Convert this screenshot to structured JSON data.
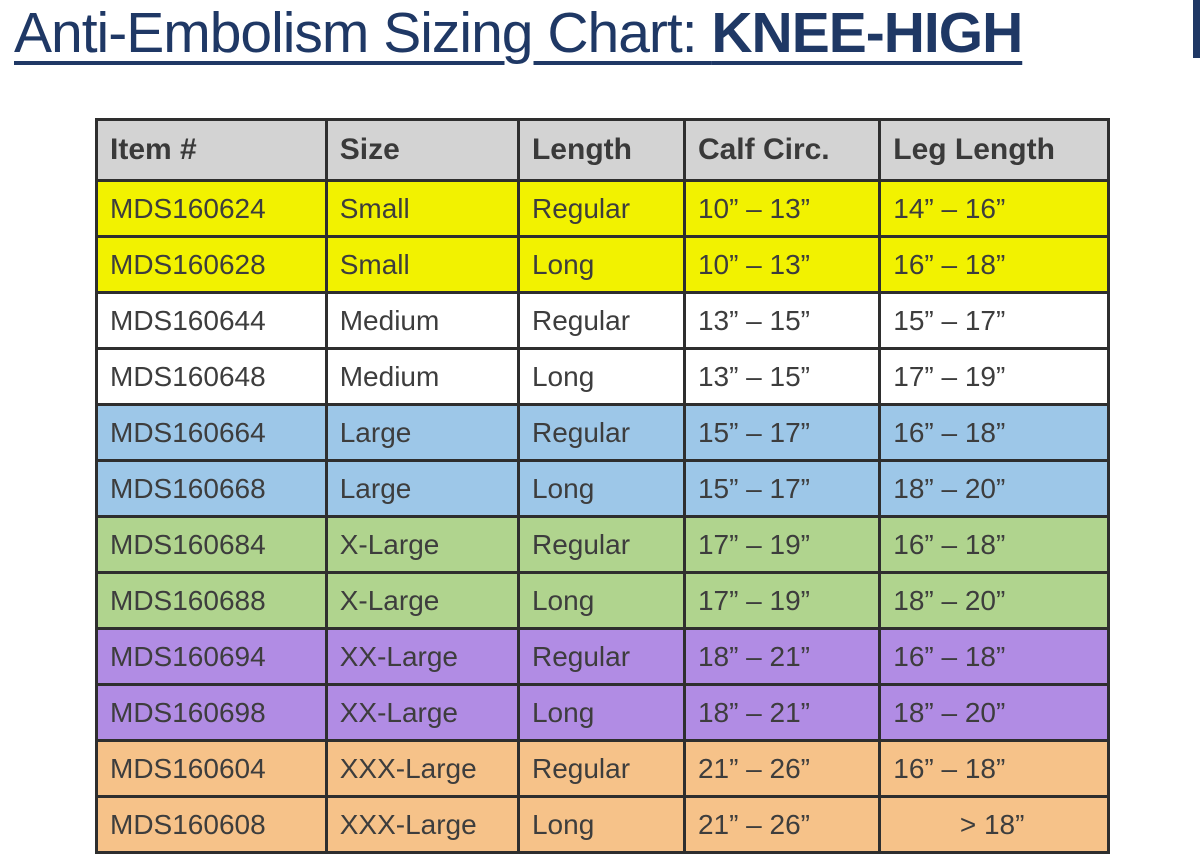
{
  "title": {
    "regular": "Anti-Embolism Sizing Chart: ",
    "bold": "KNEE-HIGH"
  },
  "colors": {
    "title_navy": "#1F3865",
    "header_gray": "#D3D3D3",
    "border": "#2E2E2E",
    "row_groups": {
      "small": "#F2F200",
      "medium": "#FFFFFF",
      "large": "#9DC7E8",
      "xlarge": "#B0D48E",
      "xxlarge": "#B18CE4",
      "xxxlarge": "#F6C289"
    }
  },
  "table": {
    "headers": [
      "Item #",
      "Size",
      "Length",
      "Calf Circ.",
      "Leg Length"
    ],
    "rows": [
      {
        "item": "MDS160624",
        "size": "Small",
        "length": "Regular",
        "calf": "10” – 13”",
        "leg": "14” – 16”",
        "group": "small"
      },
      {
        "item": "MDS160628",
        "size": "Small",
        "length": "Long",
        "calf": "10” – 13”",
        "leg": "16” – 18”",
        "group": "small"
      },
      {
        "item": "MDS160644",
        "size": "Medium",
        "length": "Regular",
        "calf": "13” – 15”",
        "leg": "15” – 17”",
        "group": "medium"
      },
      {
        "item": "MDS160648",
        "size": "Medium",
        "length": "Long",
        "calf": "13” – 15”",
        "leg": "17” – 19”",
        "group": "medium"
      },
      {
        "item": "MDS160664",
        "size": "Large",
        "length": "Regular",
        "calf": "15” – 17”",
        "leg": "16” – 18”",
        "group": "large"
      },
      {
        "item": "MDS160668",
        "size": "Large",
        "length": "Long",
        "calf": "15” – 17”",
        "leg": "18” – 20”",
        "group": "large"
      },
      {
        "item": "MDS160684",
        "size": "X-Large",
        "length": "Regular",
        "calf": "17” – 19”",
        "leg": "16” – 18”",
        "group": "xlarge"
      },
      {
        "item": "MDS160688",
        "size": "X-Large",
        "length": "Long",
        "calf": "17” – 19”",
        "leg": "18” – 20”",
        "group": "xlarge"
      },
      {
        "item": "MDS160694",
        "size": "XX-Large",
        "length": "Regular",
        "calf": "18” – 21”",
        "leg": "16” – 18”",
        "group": "xxlarge"
      },
      {
        "item": "MDS160698",
        "size": "XX-Large",
        "length": "Long",
        "calf": "18” – 21”",
        "leg": "18” – 20”",
        "group": "xxlarge"
      },
      {
        "item": "MDS160604",
        "size": "XXX-Large",
        "length": "Regular",
        "calf": "21” – 26”",
        "leg": "16” – 18”",
        "group": "xxxlarge"
      },
      {
        "item": "MDS160608",
        "size": "XXX-Large",
        "length": "Long",
        "calf": "21” – 26”",
        "leg": "> 18”",
        "group": "xxxlarge",
        "leg_align": "center"
      }
    ]
  }
}
